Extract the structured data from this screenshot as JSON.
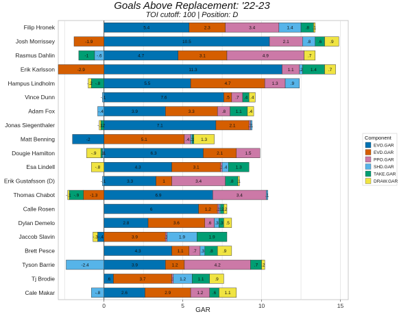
{
  "chart_data": {
    "type": "bar",
    "orientation": "horizontal",
    "stacked": true,
    "title": "Goals Above Replacement: '22-23",
    "subtitle": "TOI cutoff: 100 | Position: D",
    "xlabel": "GAR",
    "xlim": [
      -2.9,
      15.5
    ],
    "xticks": [
      0,
      5,
      10,
      15
    ],
    "grid": true,
    "legend": {
      "title": "Component",
      "position": "right",
      "entries": [
        {
          "key": "EVO",
          "label": "EVO.GAR",
          "color": "#0072b2"
        },
        {
          "key": "EVD",
          "label": "EVD.GAR",
          "color": "#d55e00"
        },
        {
          "key": "PPO",
          "label": "PPO.GAR",
          "color": "#cc79a7"
        },
        {
          "key": "SHD",
          "label": "SHD.GAR",
          "color": "#56b4e9"
        },
        {
          "key": "TAKE",
          "label": "TAKE.GAR",
          "color": "#009e73"
        },
        {
          "key": "DRAW",
          "label": "DRAW.GAR",
          "color": "#f0e442"
        }
      ]
    },
    "players": [
      {
        "name": "Filip Hronek",
        "values": {
          "EVO": 5.4,
          "EVD": 2.3,
          "PPO": 3.4,
          "SHD": 1.4,
          "TAKE": 0.8,
          "DRAW": 0.1
        }
      },
      {
        "name": "Josh Morrissey",
        "values": {
          "EVO": 10.5,
          "EVD": -1.9,
          "PPO": 2.1,
          "SHD": 0.8,
          "TAKE": 0.6,
          "DRAW": 0.9
        }
      },
      {
        "name": "Rasmus Dahlin",
        "values": {
          "EVO": 4.7,
          "EVD": 3.1,
          "PPO": 4.9,
          "SHD": -0.6,
          "TAKE": -1,
          "DRAW": 0.7
        }
      },
      {
        "name": "Erik Karlsson",
        "values": {
          "EVO": 11.3,
          "EVD": -2.9,
          "PPO": 1.1,
          "SHD": 0.2,
          "TAKE": 1.4,
          "DRAW": 0.7
        }
      },
      {
        "name": "Hampus Lindholm",
        "values": {
          "EVO": 5.5,
          "EVD": 4.7,
          "PPO": 1.3,
          "SHD": 0.9,
          "TAKE": -0.8,
          "DRAW": -0.2
        }
      },
      {
        "name": "Vince Dunn",
        "values": {
          "EVO": 7.6,
          "EVD": 0.5,
          "PPO": 0.7,
          "SHD": -0.1,
          "TAKE": 0.4,
          "DRAW": 0.4
        }
      },
      {
        "name": "Adam Fox",
        "values": {
          "EVO": 3.9,
          "EVD": 3.3,
          "PPO": 0.8,
          "SHD": -0.4,
          "TAKE": 1.1,
          "DRAW": 0.4
        }
      },
      {
        "name": "Jonas Siegenthaler",
        "values": {
          "EVO": 7.1,
          "EVD": 2.1,
          "PPO": 0.1,
          "SHD": 0.1,
          "TAKE": -0.2,
          "DRAW": -0.1
        }
      },
      {
        "name": "Matt Benning",
        "values": {
          "EVO": -2,
          "EVD": 5.1,
          "PPO": 0.4,
          "SHD": 0.1,
          "TAKE": 0.1,
          "DRAW": 1.3
        }
      },
      {
        "name": "Dougie Hamilton",
        "values": {
          "EVO": 6.3,
          "EVD": 2.1,
          "PPO": 1.5,
          "SHD": -0.1,
          "TAKE": -0.1,
          "DRAW": -0.9
        }
      },
      {
        "name": "Esa Lindell",
        "values": {
          "EVO": 4.3,
          "EVD": 3.1,
          "PPO": 0.1,
          "SHD": 0.4,
          "TAKE": 1.3,
          "DRAW": -0.8
        }
      },
      {
        "name": "Erik Gustafsson (D)",
        "values": {
          "EVO": 3.3,
          "EVD": 1,
          "PPO": 3.4,
          "SHD": -0.1,
          "TAKE": 0.8,
          "DRAW": 0.1
        }
      },
      {
        "name": "Thomas Chabot",
        "values": {
          "EVO": 6.9,
          "EVD": -1.3,
          "PPO": 3.4,
          "SHD": 0.1,
          "TAKE": -0.9,
          "DRAW": -0.1
        }
      },
      {
        "name": "Calle Rosen",
        "values": {
          "EVO": 6,
          "EVD": 1.2,
          "PPO": 0.1,
          "SHD": 0.1,
          "TAKE": 0.2,
          "DRAW": 0.2
        }
      },
      {
        "name": "Dylan Demelo",
        "values": {
          "EVO": 2.8,
          "EVD": 3.6,
          "PPO": 0.6,
          "SHD": 0.3,
          "TAKE": 0.3,
          "DRAW": 0.5
        }
      },
      {
        "name": "Jaccob Slavin",
        "values": {
          "EVO": -0.4,
          "EVD": 3.9,
          "PPO": 0.1,
          "SHD": 1.9,
          "TAKE": 1.9,
          "DRAW": -0.3
        }
      },
      {
        "name": "Brett Pesce",
        "values": {
          "EVO": 4.3,
          "EVD": 1.1,
          "PPO": 0.7,
          "SHD": 0.3,
          "TAKE": 0.8,
          "DRAW": 0.9
        }
      },
      {
        "name": "Tyson Barrie",
        "values": {
          "EVO": 3.9,
          "EVD": 1.2,
          "PPO": 4.2,
          "SHD": -2.4,
          "TAKE": 0.7,
          "DRAW": 0.2
        }
      },
      {
        "name": "Tj Brodie",
        "values": {
          "EVO": 0.6,
          "EVD": 3.7,
          "PPO": 0.1,
          "SHD": 1.2,
          "TAKE": 1.1,
          "DRAW": 0.9
        }
      },
      {
        "name": "Cale Makar",
        "values": {
          "EVO": 2.6,
          "EVD": 2.9,
          "PPO": 1.2,
          "SHD": -0.8,
          "TAKE": 0.6,
          "DRAW": 1.1
        }
      }
    ]
  }
}
